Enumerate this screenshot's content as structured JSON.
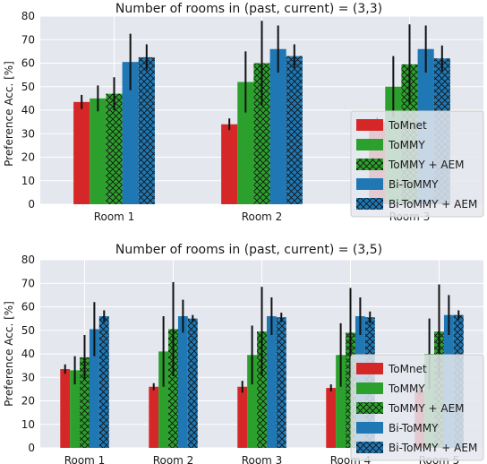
{
  "colors": {
    "ToMnet": "#d62728",
    "ToMMY": "#2ca02c",
    "ToMMY + AEM": "#2ca02c",
    "Bi-ToMMY": "#1f77b4",
    "Bi-ToMMY + AEM": "#1f77b4",
    "background": "#e5e7ef",
    "grid": "#ffffff"
  },
  "chart_data": [
    {
      "type": "bar",
      "title": "Number of rooms in (past, current) = (3,3)",
      "ylabel": "Preference Acc. [%]",
      "xlabel": "",
      "ylim": [
        0,
        80
      ],
      "yticks": [
        0,
        10,
        20,
        30,
        40,
        50,
        60,
        70,
        80
      ],
      "categories": [
        "Room 1",
        "Room 2",
        "Room 3"
      ],
      "legend_position": "lower-right",
      "series": [
        {
          "name": "ToMnet",
          "hatch": false,
          "values": [
            43.5,
            34,
            35
          ],
          "errors": [
            3,
            2.5,
            2
          ]
        },
        {
          "name": "ToMMY",
          "hatch": false,
          "values": [
            45,
            52,
            50
          ],
          "errors": [
            5.5,
            13,
            13
          ]
        },
        {
          "name": "ToMMY + AEM",
          "hatch": true,
          "values": [
            47,
            60,
            59.5
          ],
          "errors": [
            7,
            18,
            17
          ]
        },
        {
          "name": "Bi-ToMMY",
          "hatch": false,
          "values": [
            60.5,
            66,
            66
          ],
          "errors": [
            12,
            10,
            10
          ]
        },
        {
          "name": "Bi-ToMMY + AEM",
          "hatch": true,
          "values": [
            62.5,
            63,
            62
          ],
          "errors": [
            5.5,
            5,
            5.5
          ]
        }
      ]
    },
    {
      "type": "bar",
      "title": "Number of rooms in (past, current) = (3,5)",
      "ylabel": "Preference Acc. [%]",
      "xlabel": "",
      "ylim": [
        0,
        80
      ],
      "yticks": [
        0,
        10,
        20,
        30,
        40,
        50,
        60,
        70,
        80
      ],
      "categories": [
        "Room 1",
        "Room 2",
        "Room 3",
        "Room 4",
        "Room 5"
      ],
      "legend_position": "lower-right",
      "series": [
        {
          "name": "ToMnet",
          "hatch": false,
          "values": [
            33.5,
            26,
            26,
            25.5,
            24.5
          ],
          "errors": [
            2,
            1.5,
            2.5,
            1.5,
            2
          ]
        },
        {
          "name": "ToMMY",
          "hatch": false,
          "values": [
            33,
            41,
            39.5,
            39.5,
            40
          ],
          "errors": [
            6,
            15,
            12.5,
            13.5,
            15
          ]
        },
        {
          "name": "ToMMY + AEM",
          "hatch": true,
          "values": [
            38.5,
            50.5,
            49.5,
            49,
            49.5
          ],
          "errors": [
            9.5,
            20,
            19,
            19,
            20
          ]
        },
        {
          "name": "Bi-ToMMY",
          "hatch": false,
          "values": [
            50.5,
            56,
            56,
            56,
            56.5
          ],
          "errors": [
            11.5,
            7,
            8,
            8,
            8.5
          ]
        },
        {
          "name": "Bi-ToMMY + AEM",
          "hatch": true,
          "values": [
            56,
            55,
            55.5,
            55.5,
            56.5
          ],
          "errors": [
            2.5,
            1.5,
            2,
            2.5,
            2
          ]
        }
      ]
    }
  ]
}
